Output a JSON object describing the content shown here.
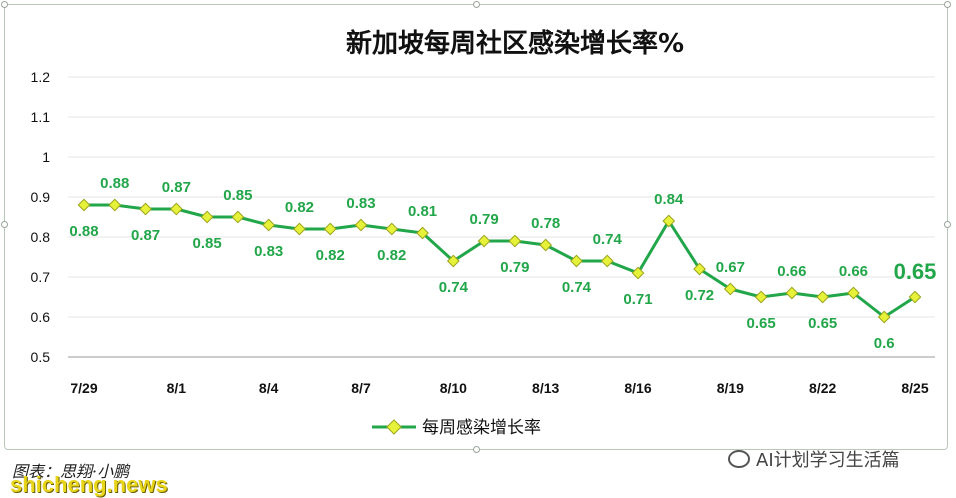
{
  "chart_data": {
    "type": "line",
    "title": "新加坡每周社区感染增长率%",
    "ylim": [
      0.5,
      1.2
    ],
    "yticks": [
      "0.5",
      "0.6",
      "0.7",
      "0.8",
      "0.9",
      "1",
      "1.1",
      "1.2"
    ],
    "xtick_labels": [
      "7/29",
      "8/1",
      "8/4",
      "8/7",
      "8/10",
      "8/13",
      "8/16",
      "8/19",
      "8/22",
      "8/25"
    ],
    "grid": true,
    "legend_position": "bottom",
    "series": [
      {
        "name": "每周感染增长率",
        "color": "#22a64a",
        "marker_color": "#e6f23a",
        "values": [
          0.88,
          0.88,
          0.87,
          0.87,
          0.85,
          0.85,
          0.83,
          0.82,
          0.82,
          0.83,
          0.82,
          0.81,
          0.74,
          0.79,
          0.79,
          0.78,
          0.74,
          0.74,
          0.71,
          0.84,
          0.72,
          0.67,
          0.65,
          0.66,
          0.65,
          0.66,
          0.6,
          0.65
        ]
      }
    ],
    "data_labels": [
      "0.88",
      "0.88",
      "0.87",
      "0.87",
      "0.85",
      "0.85",
      "0.83",
      "0.82",
      "0.82",
      "0.83",
      "0.82",
      "0.81",
      "0.74",
      "0.79",
      "0.79",
      "0.78",
      "0.74",
      "0.74",
      "0.71",
      "0.84",
      "0.72",
      "0.67",
      "0.65",
      "0.66",
      "0.65",
      "0.66",
      "0.6",
      "0.65"
    ]
  },
  "footer": {
    "credit": "图表：思翔·小鹏",
    "site": "shicheng.news",
    "wechat": "AI计划学习生活篇"
  }
}
